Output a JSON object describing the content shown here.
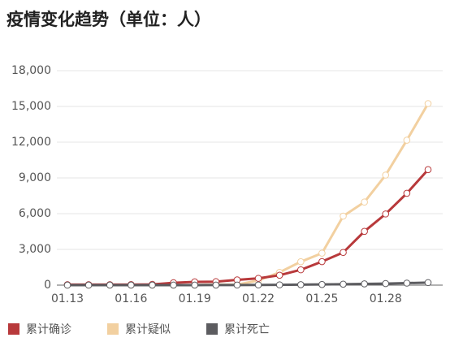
{
  "chart_data": {
    "type": "line",
    "title": "疫情变化趋势（单位：人）",
    "categories": [
      "01.13",
      null,
      null,
      "01.16",
      null,
      null,
      "01.19",
      null,
      null,
      "01.22",
      null,
      null,
      "01.25",
      null,
      null,
      "01.28",
      null,
      null
    ],
    "series": [
      {
        "name": "累计确诊",
        "color": "#b8393b",
        "values": [
          41,
          41,
          41,
          45,
          62,
          198,
          275,
          291,
          440,
          571,
          830,
          1287,
          1975,
          2744,
          4515,
          5974,
          7711,
          9692
        ]
      },
      {
        "name": "累计疑似",
        "color": "#f2d0a0",
        "values": [
          0,
          0,
          0,
          0,
          0,
          0,
          0,
          54,
          37,
          393,
          1072,
          1965,
          2684,
          5794,
          6973,
          9239,
          12167,
          15238
        ]
      },
      {
        "name": "累计死亡",
        "color": "#5c5c60",
        "values": [
          1,
          1,
          2,
          2,
          2,
          3,
          3,
          6,
          9,
          17,
          25,
          41,
          56,
          80,
          106,
          132,
          170,
          213
        ]
      }
    ],
    "ylim": [
      0,
      18000
    ],
    "yticks": [
      0,
      {
        "value": 3000,
        "label": "3,000"
      },
      {
        "value": 6000,
        "label": "6,000"
      },
      {
        "value": 9000,
        "label": "9,000"
      },
      {
        "value": 12000,
        "label": "12,000"
      },
      {
        "value": 15000,
        "label": "15,000"
      },
      {
        "value": 18000,
        "label": "18,000"
      }
    ],
    "grid": true,
    "legend": "bottom"
  }
}
